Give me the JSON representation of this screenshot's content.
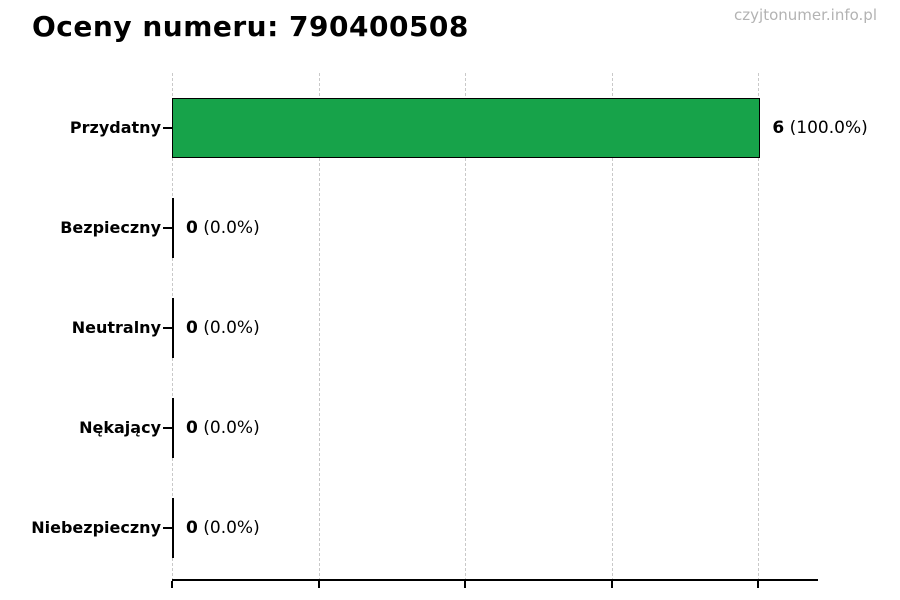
{
  "header": {
    "title": "Oceny numeru: 790400508",
    "watermark": "czyjtonumer.info.pl"
  },
  "chart_data": {
    "type": "bar",
    "orientation": "horizontal",
    "title": "Oceny numeru: 790400508",
    "xlabel": "",
    "ylabel": "",
    "categories": [
      "Przydatny",
      "Bezpieczny",
      "Neutralny",
      "Nękający",
      "Niebezpieczny"
    ],
    "values": [
      6,
      0,
      0,
      0,
      0
    ],
    "percentages": [
      100.0,
      0.0,
      0.0,
      0.0,
      0.0
    ],
    "pct_labels": [
      "(100.0%)",
      "(0.0%)",
      "(0.0%)",
      "(0.0%)",
      "(0.0%)"
    ],
    "xlim": [
      0,
      6
    ],
    "x_tick_values": [
      0,
      1.5,
      3,
      4.5,
      6
    ],
    "x_tick_labels": [
      "",
      "",
      "",
      "",
      ""
    ],
    "grid": "vertical-dashed",
    "legend": "none",
    "bar_color": "#17a34a",
    "bar_border_color": "#000000",
    "gridline_color": "#c9c9c9",
    "axis_color": "#000000",
    "watermark_color": "#b3b3b3"
  }
}
